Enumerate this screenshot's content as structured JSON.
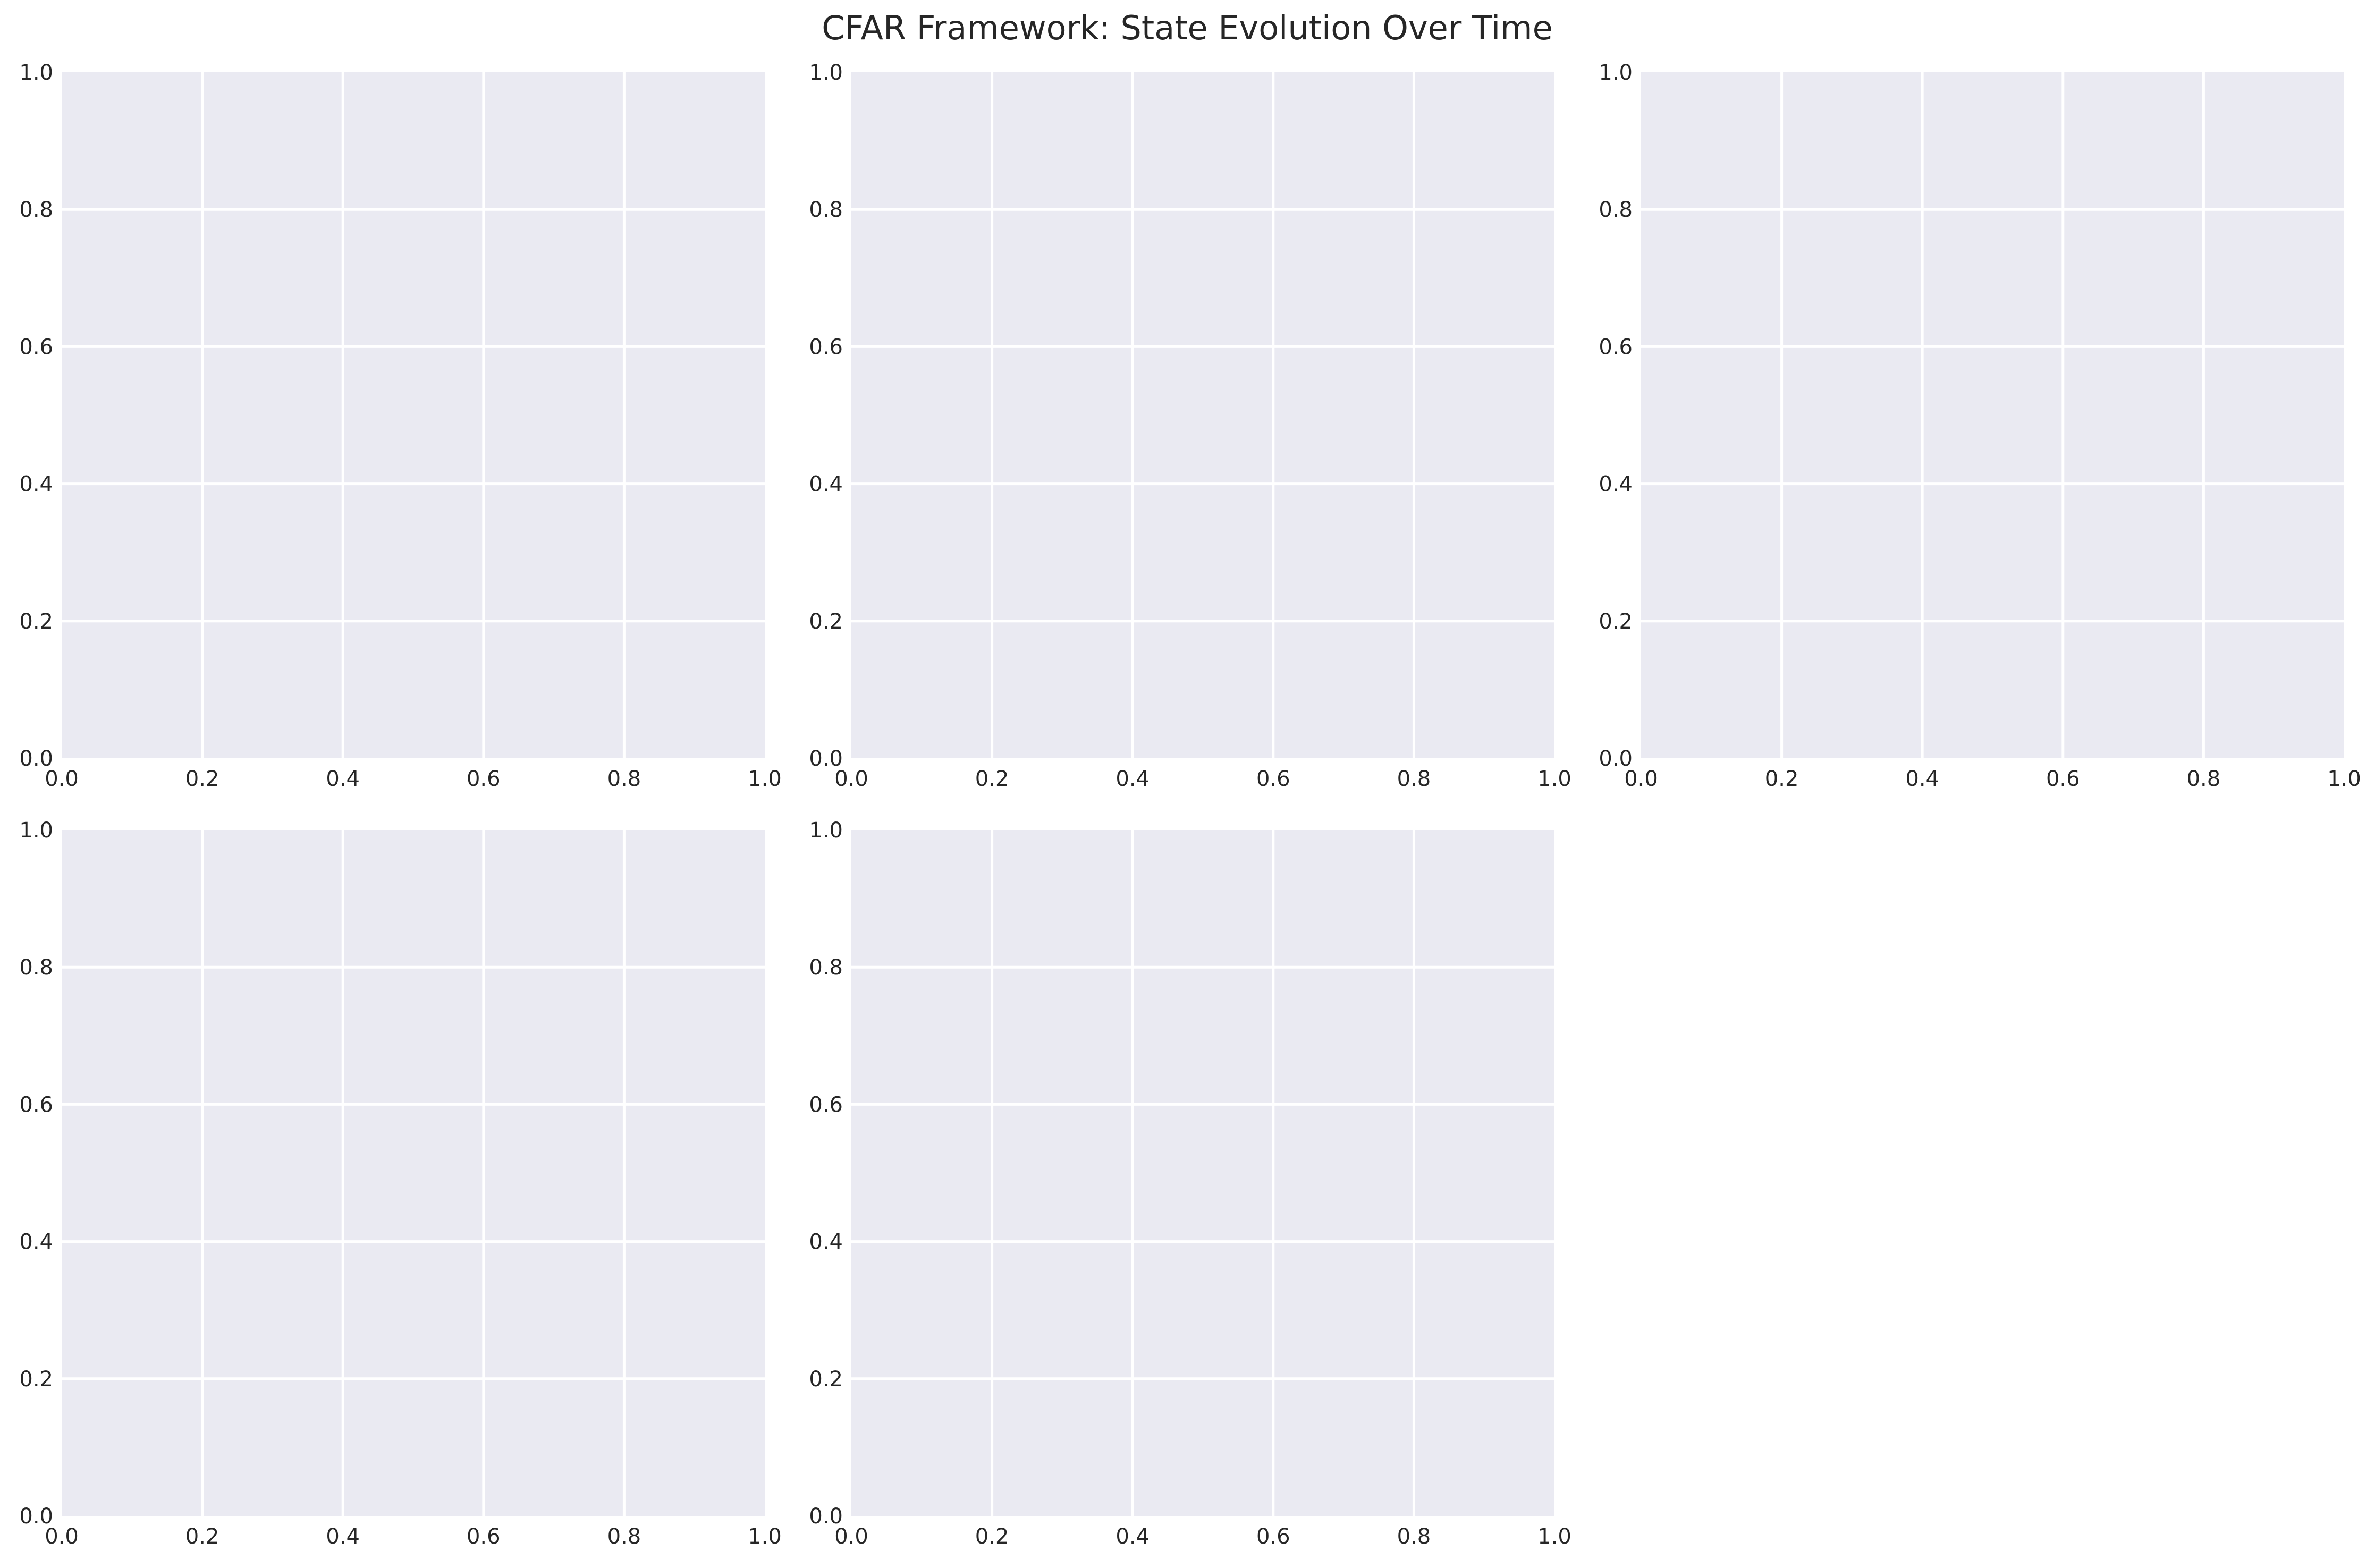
{
  "chart_data": {
    "title": "CFAR Framework: State Evolution Over Time",
    "type": "line",
    "colors": {
      "plot_background": "#eaeaf2",
      "grid": "#ffffff",
      "text": "#262626"
    },
    "grid": true,
    "subplots": [
      {
        "id": "subplot-1",
        "xlim": [
          0,
          1
        ],
        "ylim": [
          0,
          1
        ],
        "x_ticks": [
          "0.0",
          "0.2",
          "0.4",
          "0.6",
          "0.8",
          "1.0"
        ],
        "y_ticks": [
          "0.0",
          "0.2",
          "0.4",
          "0.6",
          "0.8",
          "1.0"
        ],
        "series": []
      },
      {
        "id": "subplot-2",
        "xlim": [
          0,
          1
        ],
        "ylim": [
          0,
          1
        ],
        "x_ticks": [
          "0.0",
          "0.2",
          "0.4",
          "0.6",
          "0.8",
          "1.0"
        ],
        "y_ticks": [
          "0.0",
          "0.2",
          "0.4",
          "0.6",
          "0.8",
          "1.0"
        ],
        "series": []
      },
      {
        "id": "subplot-3",
        "xlim": [
          0,
          1
        ],
        "ylim": [
          0,
          1
        ],
        "x_ticks": [
          "0.0",
          "0.2",
          "0.4",
          "0.6",
          "0.8",
          "1.0"
        ],
        "y_ticks": [
          "0.0",
          "0.2",
          "0.4",
          "0.6",
          "0.8",
          "1.0"
        ],
        "series": []
      },
      {
        "id": "subplot-4",
        "xlim": [
          0,
          1
        ],
        "ylim": [
          0,
          1
        ],
        "x_ticks": [
          "0.0",
          "0.2",
          "0.4",
          "0.6",
          "0.8",
          "1.0"
        ],
        "y_ticks": [
          "0.0",
          "0.2",
          "0.4",
          "0.6",
          "0.8",
          "1.0"
        ],
        "series": []
      },
      {
        "id": "subplot-5",
        "xlim": [
          0,
          1
        ],
        "ylim": [
          0,
          1
        ],
        "x_ticks": [
          "0.0",
          "0.2",
          "0.4",
          "0.6",
          "0.8",
          "1.0"
        ],
        "y_ticks": [
          "0.0",
          "0.2",
          "0.4",
          "0.6",
          "0.8",
          "1.0"
        ],
        "series": []
      }
    ]
  }
}
